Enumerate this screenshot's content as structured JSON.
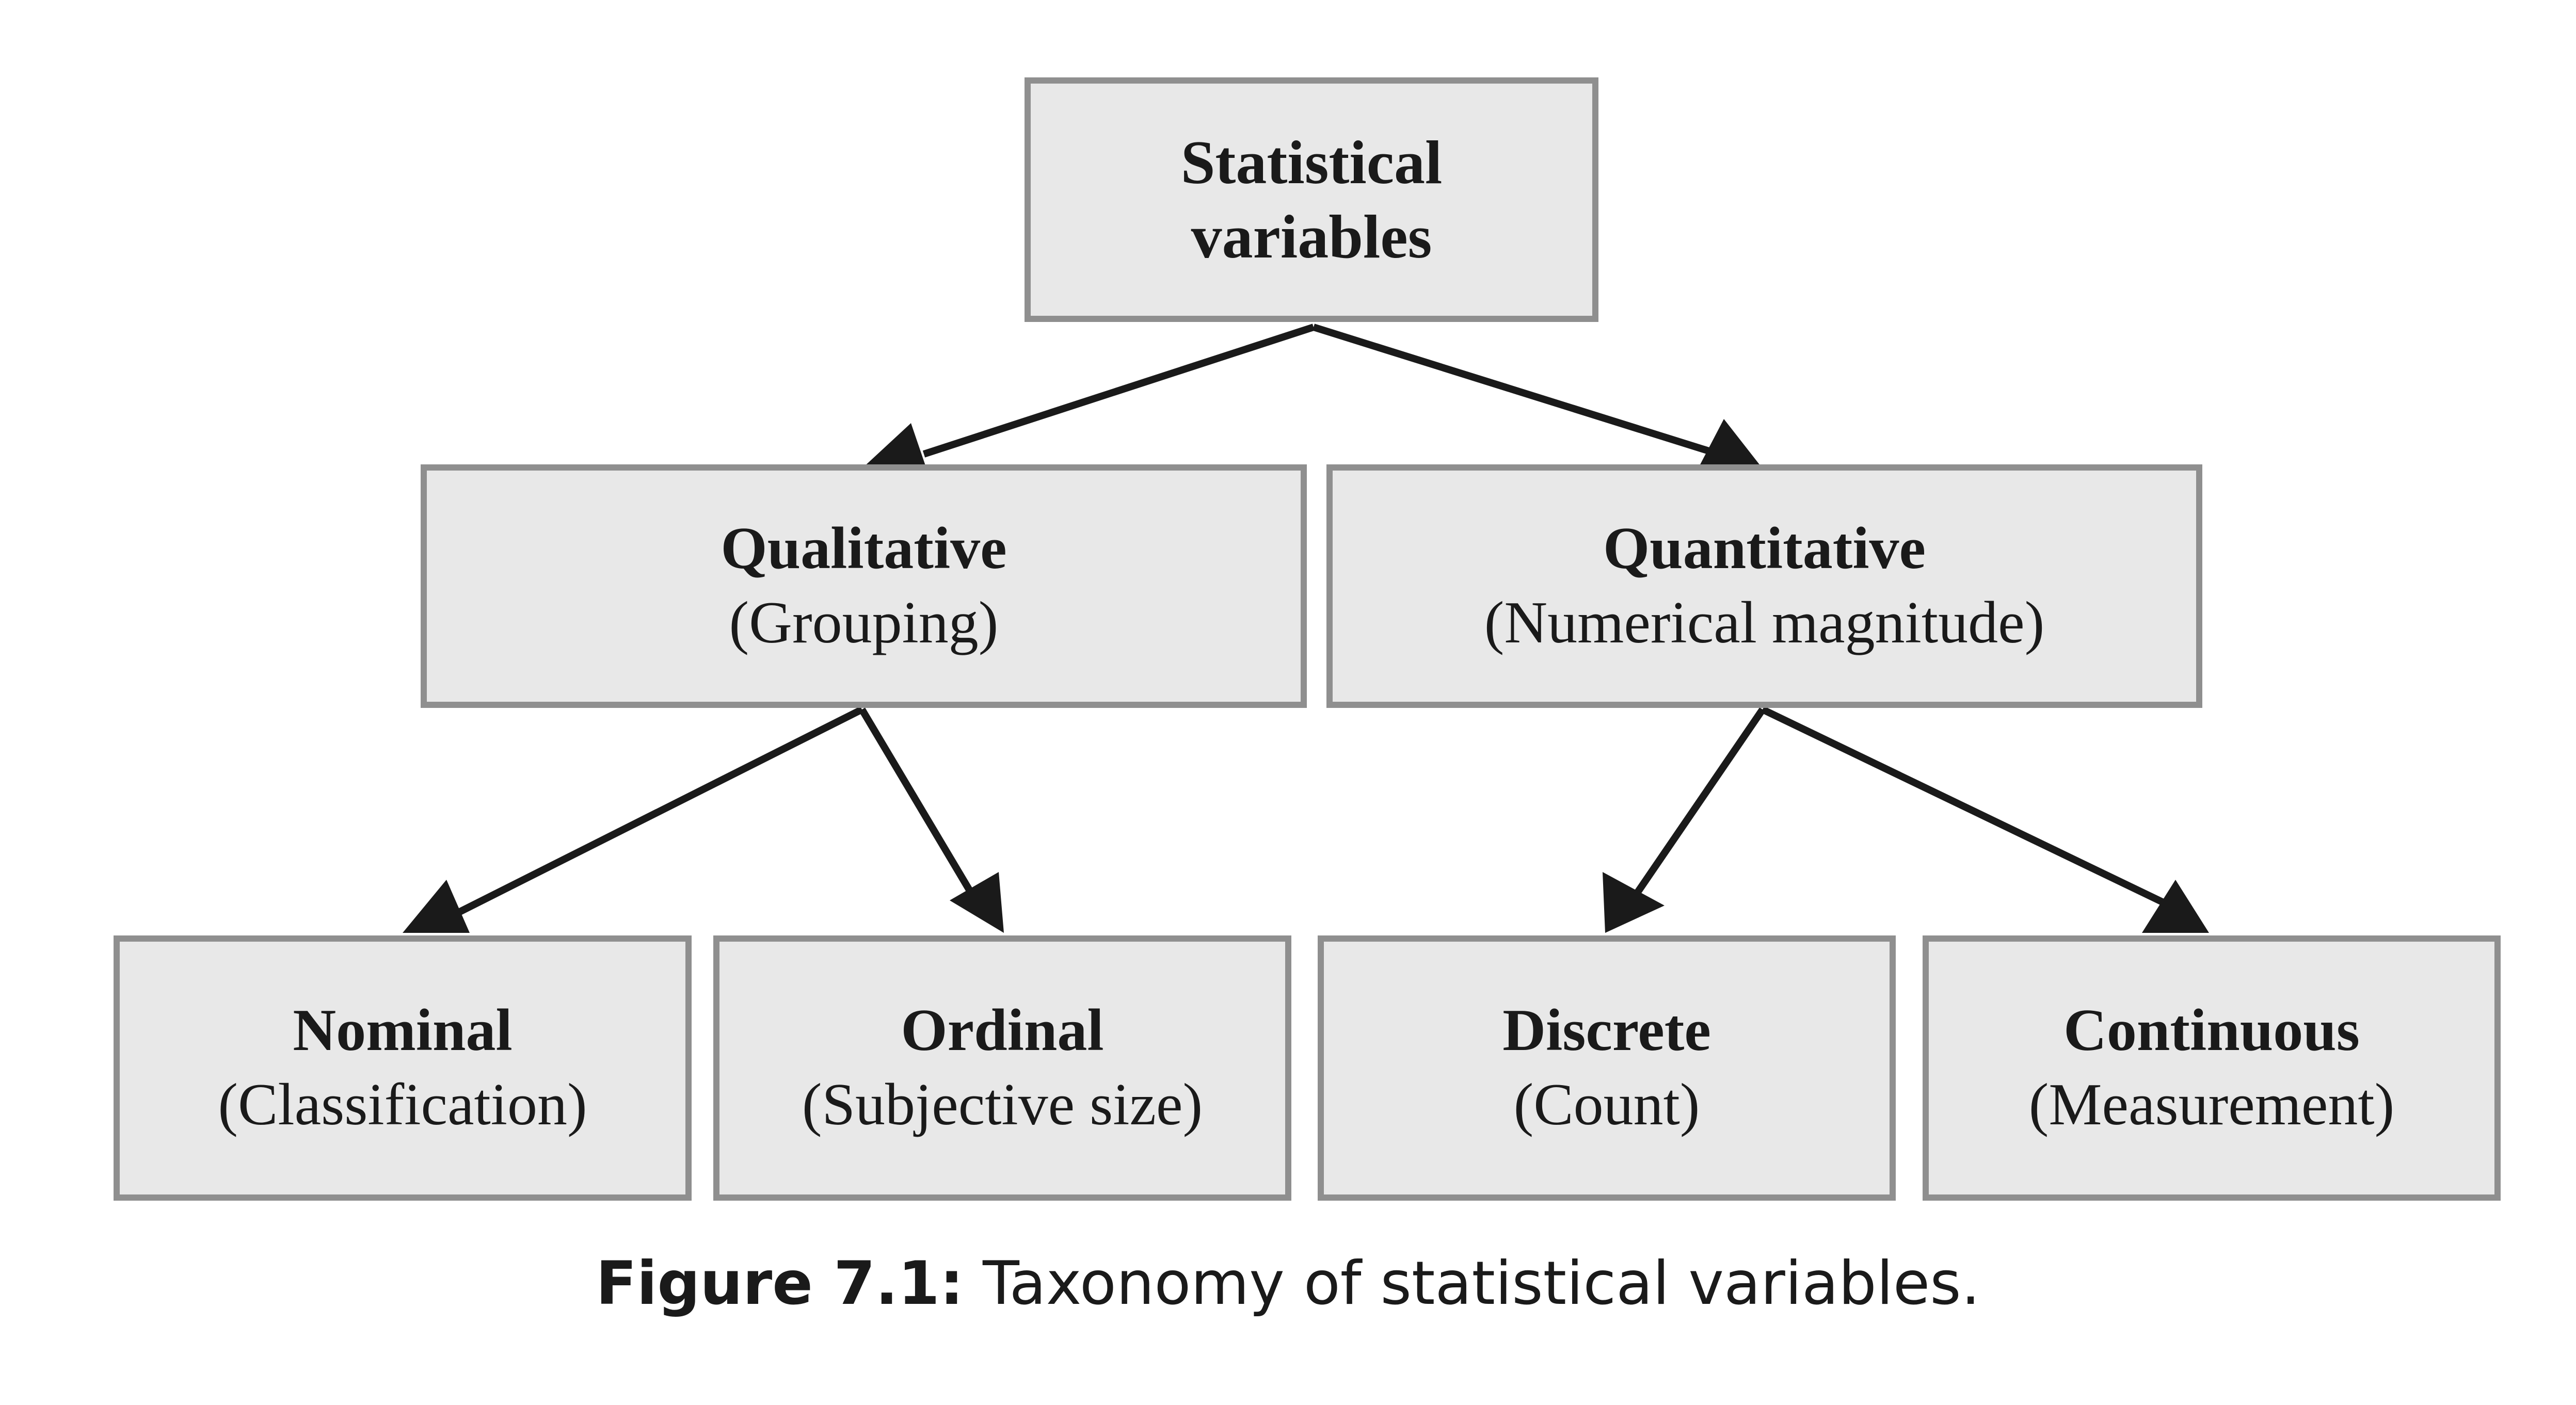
{
  "diagram": {
    "root": {
      "title_line1": "Statistical",
      "title_line2": "variables"
    },
    "qualitative": {
      "title": "Qualitative",
      "subtitle": "(Grouping)"
    },
    "quantitative": {
      "title": "Quantitative",
      "subtitle": "(Numerical magnitude)"
    },
    "nominal": {
      "title": "Nominal",
      "subtitle": "(Classification)"
    },
    "ordinal": {
      "title": "Ordinal",
      "subtitle": "(Subjective size)"
    },
    "discrete": {
      "title": "Discrete",
      "subtitle": "(Count)"
    },
    "continuous": {
      "title": "Continuous",
      "subtitle": "(Measurement)"
    },
    "edges": [
      [
        "Statistical variables",
        "Qualitative"
      ],
      [
        "Statistical variables",
        "Quantitative"
      ],
      [
        "Qualitative",
        "Nominal"
      ],
      [
        "Qualitative",
        "Ordinal"
      ],
      [
        "Quantitative",
        "Discrete"
      ],
      [
        "Quantitative",
        "Continuous"
      ]
    ]
  },
  "caption": {
    "label": "Figure 7.1:",
    "text": " Taxonomy of statistical variables."
  },
  "colors": {
    "box_fill": "#e8e8e8",
    "box_border": "#8f8f8f",
    "arrow": "#1a1a1a"
  }
}
